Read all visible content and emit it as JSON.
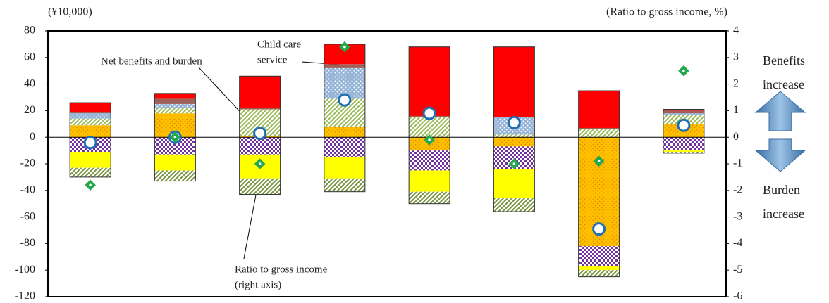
{
  "chart_data": {
    "type": "bar",
    "stacked": true,
    "y_label": "(¥10,000)",
    "y2_label": "(Ratio to gross income, %)",
    "categories": [
      null,
      null,
      null,
      null,
      null,
      null,
      null,
      null
    ],
    "ylim": [
      -120,
      80
    ],
    "yticks": [
      -120,
      -100,
      -80,
      -60,
      -40,
      -20,
      0,
      20,
      40,
      60,
      80
    ],
    "y2lim": [
      -6,
      4
    ],
    "y2ticks": [
      -6,
      -5,
      -4,
      -3,
      -2,
      -1,
      0,
      1,
      2,
      3,
      4
    ],
    "series": [
      {
        "color": "#ffc000",
        "pattern": "dots",
        "values": [
          9,
          18,
          1,
          8,
          -10,
          -7,
          -82,
          10
        ]
      },
      {
        "color": "#9bbb59",
        "pattern": "hatch",
        "values": [
          5,
          4,
          20,
          21,
          15,
          2,
          6,
          7
        ]
      },
      {
        "color": "#95b3d7",
        "pattern": "dots-light",
        "values": [
          4,
          3,
          0,
          23,
          0,
          13,
          0,
          1
        ]
      },
      {
        "color": "#a0605a",
        "pattern": "solid",
        "values": [
          1,
          4,
          1,
          3,
          1,
          0,
          1,
          2
        ]
      },
      {
        "color": "#ff0000",
        "pattern": "solid",
        "values": [
          7,
          4,
          24,
          15,
          52,
          53,
          28,
          1
        ]
      },
      {
        "color": "#7030a0",
        "pattern": "check",
        "values": [
          -11,
          -13,
          -13,
          -15,
          -15,
          -17,
          -15,
          -10
        ]
      },
      {
        "color": "#ffff00",
        "pattern": "solid",
        "values": [
          -12,
          -12,
          -18,
          -16,
          -16,
          -22,
          -3,
          -1
        ]
      },
      {
        "color": "#76923c",
        "pattern": "hatch",
        "values": [
          -7,
          -8,
          -12,
          -10,
          -9,
          -10,
          -5,
          -1
        ]
      },
      {
        "type": "scatter",
        "marker": "circle",
        "color": "#1f6fb4",
        "values": [
          -4,
          0,
          3,
          28,
          18,
          11,
          -69,
          9
        ]
      },
      {
        "type": "scatter",
        "marker": "diamond",
        "color": "#22a84a",
        "axis": "y2",
        "values": [
          -1.8,
          0,
          -1.0,
          3.4,
          -0.1,
          -1.0,
          -0.9,
          2.5
        ]
      }
    ],
    "annotations": [
      {
        "lines": [
          "Net benefits and burden"
        ]
      },
      {
        "lines": [
          "Child care",
          "service"
        ]
      },
      {
        "lines": [
          "Ratio to gross income",
          "(right axis)"
        ]
      },
      {
        "lines": [
          "Benefits",
          "increase"
        ]
      },
      {
        "lines": [
          "Burden",
          "increase"
        ]
      }
    ]
  }
}
